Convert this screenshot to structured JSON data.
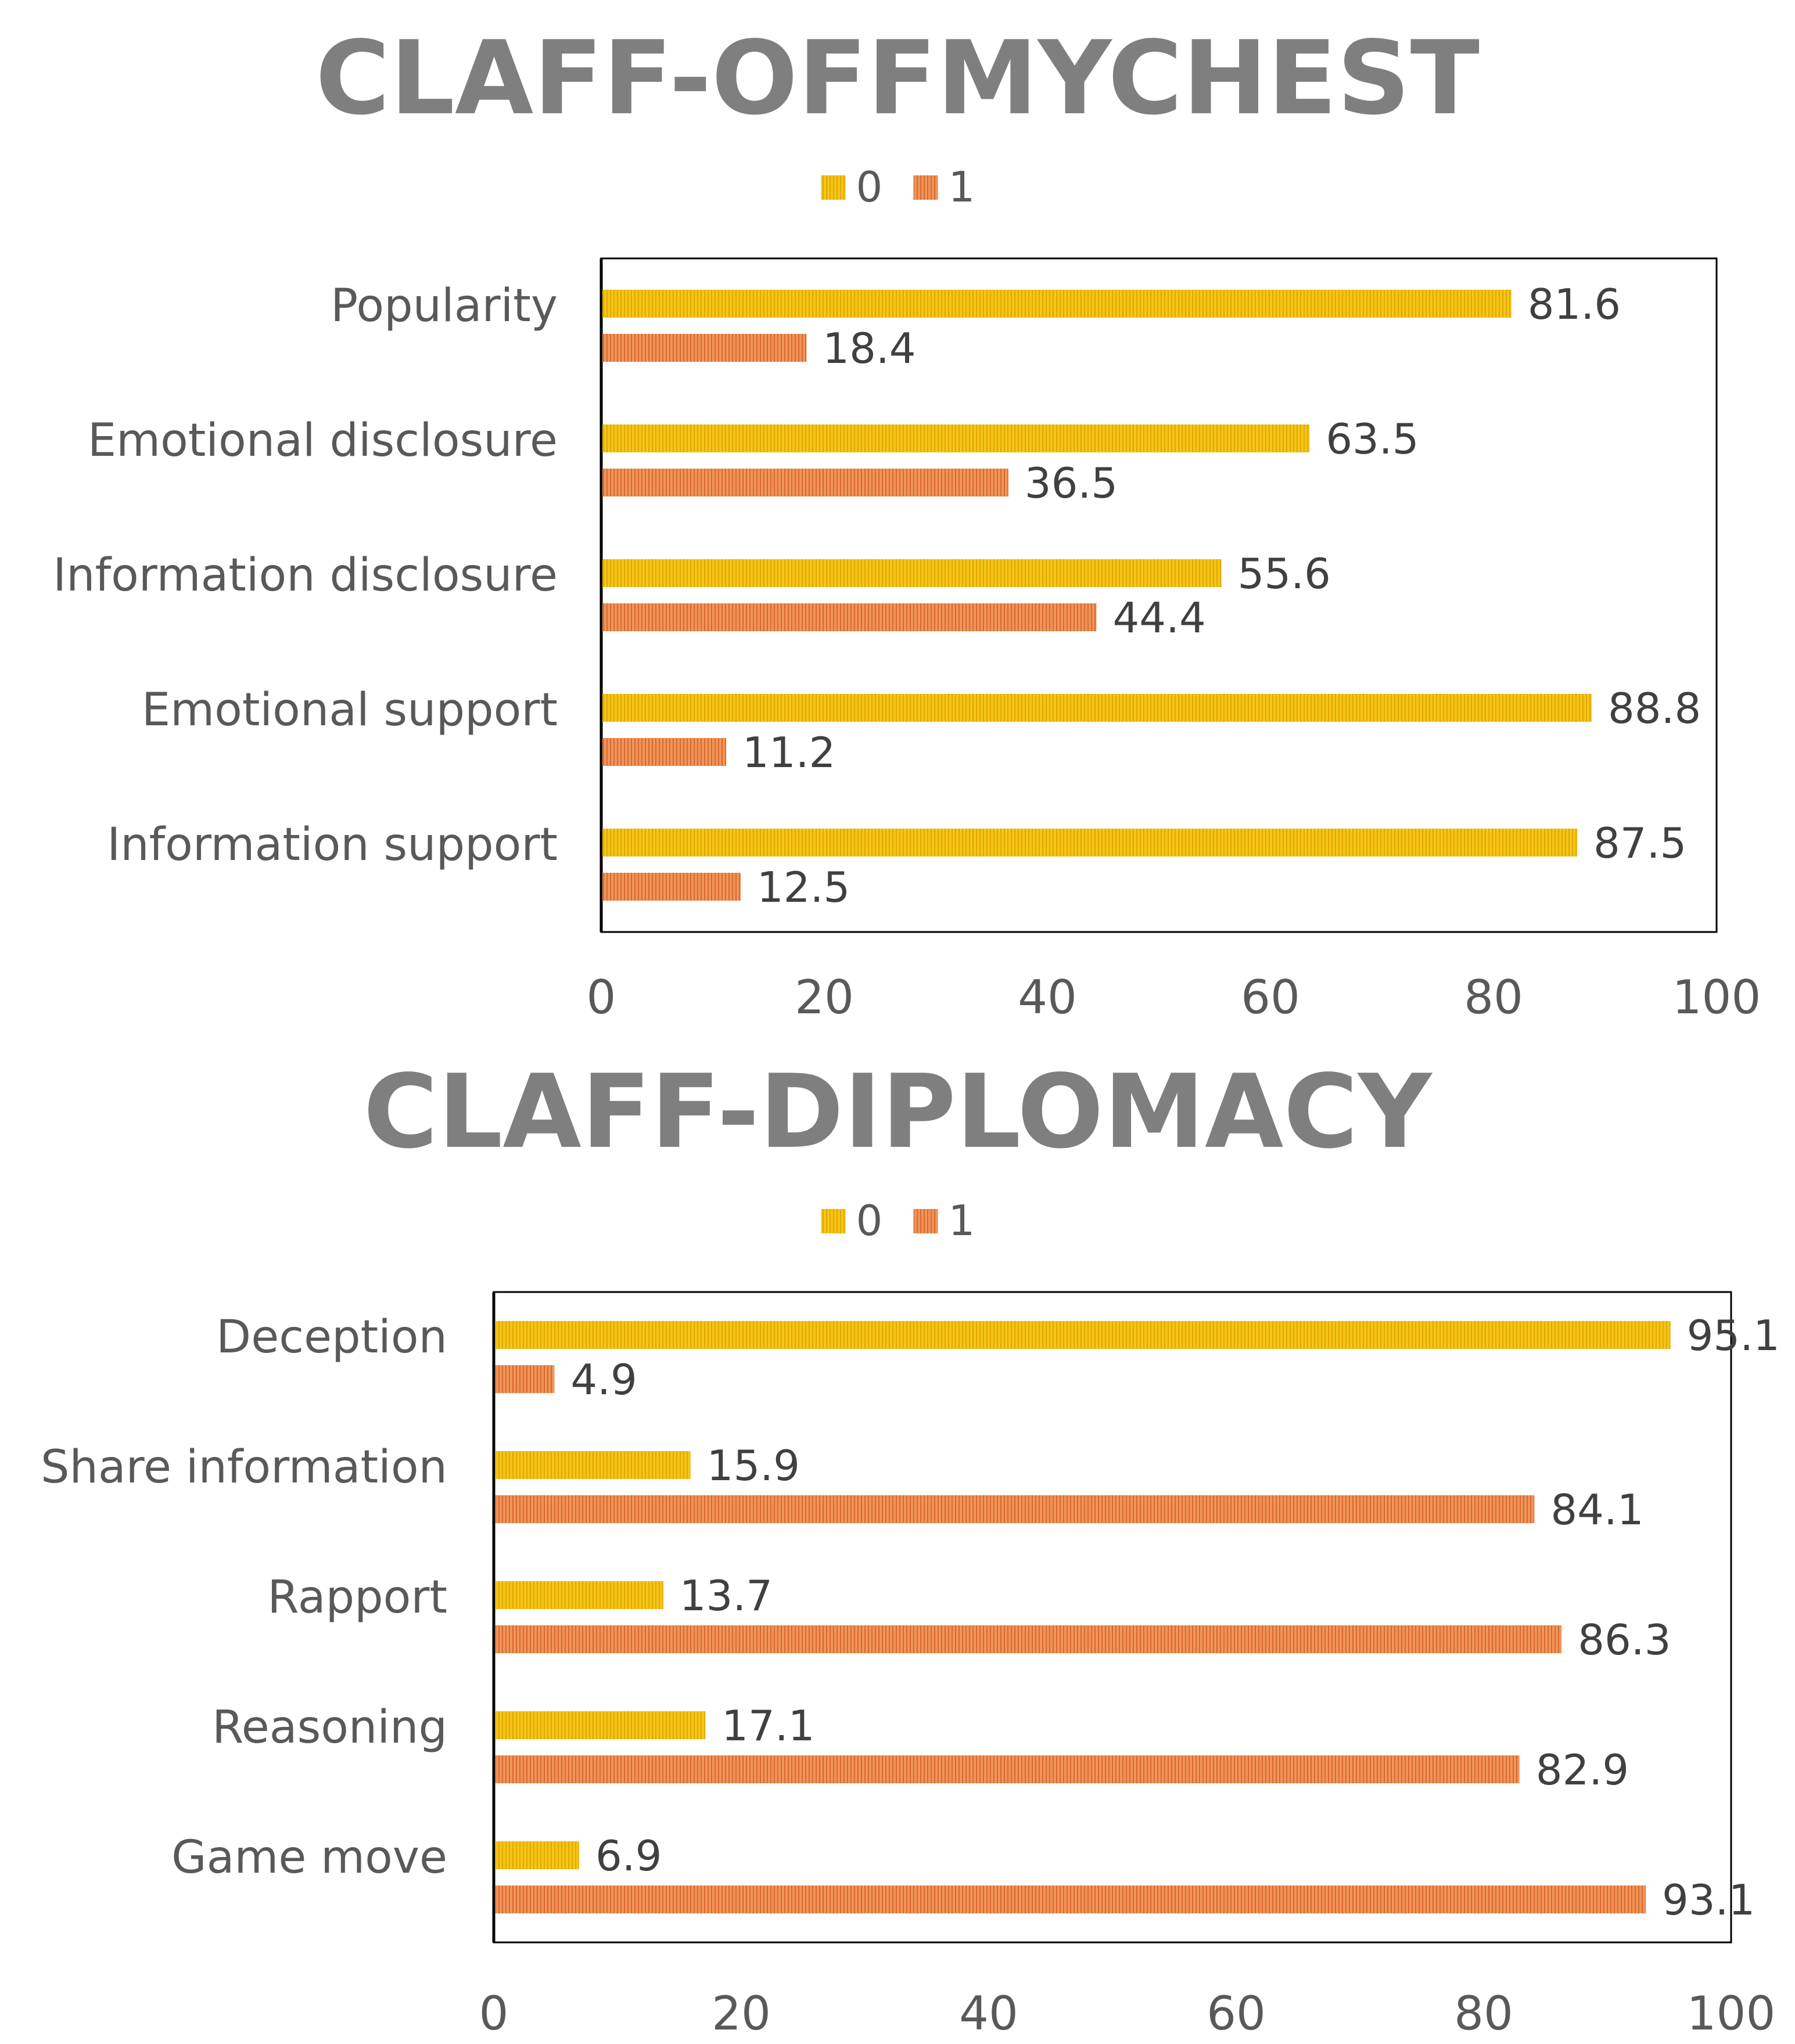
{
  "colors": {
    "series0": "#F5C518",
    "series0_stripe": "#E0A800",
    "series1": "#F0955A",
    "series1_stripe": "#D9692E",
    "title": "#7f7f7f",
    "text": "#595959",
    "value_text": "#404040",
    "frame": "#000000"
  },
  "chart_data": [
    {
      "type": "bar",
      "orientation": "horizontal",
      "title": "CLAFF-OFFMYCHEST",
      "categories": [
        "Popularity",
        "Emotional disclosure",
        "Information disclosure",
        "Emotional support",
        "Information support"
      ],
      "series": [
        {
          "name": "0",
          "values": [
            81.6,
            63.5,
            55.6,
            88.8,
            87.5
          ]
        },
        {
          "name": "1",
          "values": [
            18.4,
            36.5,
            44.4,
            11.2,
            12.5
          ]
        }
      ],
      "xlim": [
        0,
        100
      ],
      "xticks": [
        "0",
        "20",
        "40",
        "60",
        "80",
        "100"
      ],
      "legend": "top-center",
      "grid": false
    },
    {
      "type": "bar",
      "orientation": "horizontal",
      "title": "CLAFF-DIPLOMACY",
      "categories": [
        "Deception",
        "Share information",
        "Rapport",
        "Reasoning",
        "Game move"
      ],
      "series": [
        {
          "name": "0",
          "values": [
            95.1,
            15.9,
            13.7,
            17.1,
            6.9
          ]
        },
        {
          "name": "1",
          "values": [
            4.9,
            84.1,
            86.3,
            82.9,
            93.1
          ]
        }
      ],
      "xlim": [
        0,
        100
      ],
      "xticks": [
        "0",
        "20",
        "40",
        "60",
        "80",
        "100"
      ],
      "legend": "top-center",
      "grid": false
    }
  ]
}
